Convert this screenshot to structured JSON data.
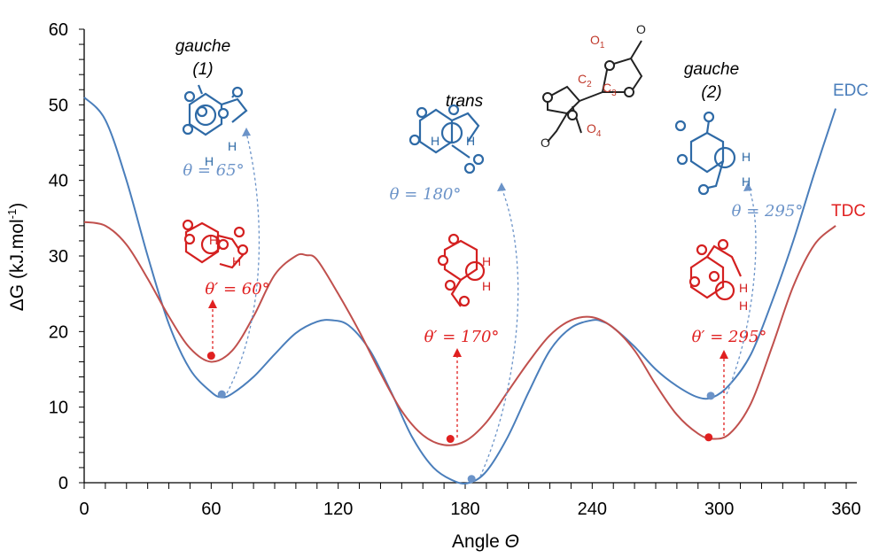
{
  "chart_data": {
    "type": "line",
    "title": "",
    "xlabel": "Angle Θ",
    "ylabel": "ΔG (kJ.mol-1)",
    "xlim": [
      0,
      360
    ],
    "ylim": [
      0,
      60
    ],
    "x_ticks": [
      0,
      60,
      120,
      180,
      240,
      300,
      360
    ],
    "y_ticks": [
      0,
      10,
      20,
      30,
      40,
      50,
      60
    ],
    "grid": false,
    "series": [
      {
        "name": "EDC",
        "color": "#4a7ebb",
        "x": [
          0,
          10,
          20,
          30,
          40,
          50,
          60,
          65,
          70,
          80,
          90,
          100,
          110,
          117,
          125,
          135,
          145,
          155,
          165,
          175,
          182,
          190,
          200,
          210,
          220,
          230,
          240,
          245,
          250,
          260,
          270,
          280,
          290,
          297,
          305,
          315,
          325,
          335,
          345,
          355
        ],
        "values": [
          51,
          48,
          40,
          30,
          21,
          15,
          12,
          11.3,
          11.8,
          14,
          17,
          19.8,
          21.3,
          21.5,
          20.8,
          17.5,
          12,
          6,
          2,
          0.2,
          0,
          1.5,
          6,
          12,
          17.5,
          20.5,
          21.5,
          21.3,
          20.5,
          18,
          15,
          12.8,
          11.3,
          11.3,
          13,
          17,
          24,
          32,
          41,
          49.5
        ]
      },
      {
        "name": "TDC",
        "color": "#c0504d",
        "x": [
          0,
          10,
          20,
          30,
          40,
          50,
          60,
          70,
          80,
          90,
          100,
          105,
          110,
          120,
          130,
          140,
          150,
          160,
          170,
          180,
          190,
          200,
          210,
          220,
          230,
          240,
          250,
          260,
          270,
          280,
          290,
          297,
          305,
          315,
          325,
          335,
          345,
          355
        ],
        "values": [
          34.5,
          34,
          31.5,
          27,
          22,
          17.8,
          16,
          17.5,
          22,
          27.5,
          30,
          30.1,
          29.5,
          25,
          20,
          14.5,
          9.5,
          6.3,
          5,
          5.5,
          8,
          12,
          16,
          19.5,
          21.5,
          21.9,
          20.5,
          17.5,
          13,
          9,
          6.5,
          5.8,
          6.5,
          10.5,
          18,
          26,
          31.5,
          34
        ]
      }
    ],
    "markers": [
      {
        "series": "EDC",
        "x": 65,
        "y": 11.7
      },
      {
        "series": "EDC",
        "x": 183,
        "y": 0.5
      },
      {
        "series": "EDC",
        "x": 296,
        "y": 11.5
      },
      {
        "series": "TDC",
        "x": 60,
        "y": 16.8
      },
      {
        "series": "TDC",
        "x": 173,
        "y": 5.8
      },
      {
        "series": "TDC",
        "x": 295,
        "y": 6
      }
    ],
    "annotations": {
      "gauche1": "gauche\n(1)",
      "trans": "trans",
      "gauche2": "gauche\n(2)",
      "edc_angles": [
        "θ = 65°",
        "θ = 180°",
        "θ = 295°"
      ],
      "tdc_angles": [
        "θ′ = 60°",
        "θ′ = 170°",
        "θ′ = 295°"
      ]
    }
  },
  "labels": {
    "gauche1_line1": "gauche",
    "gauche1_line2": "(1)",
    "trans": "trans",
    "gauche2_line1": "gauche",
    "gauche2_line2": "(2)",
    "edc_65": "θ = 65°",
    "edc_180": "θ = 180°",
    "edc_295": "θ = 295°",
    "tdc_60": "θ′ = 60°",
    "tdc_170": "θ′ = 170°",
    "tdc_295": "θ′ = 295°",
    "series_edc": "EDC",
    "series_tdc": "TDC",
    "atom_o": "O",
    "atom_h": "H",
    "atom_c": "C",
    "sub_1": "1",
    "sub_2": "2",
    "sub_3": "3",
    "sub_4": "4",
    "xlabel_main": "Angle ",
    "xlabel_sym": "Θ",
    "ylabel_main": "ΔG (kJ.mol",
    "ylabel_sup": "-1",
    "ylabel_close": ")"
  },
  "colors": {
    "edc": "#4a7ebb",
    "tdc": "#c0504d",
    "edc_text": "#6b93c8",
    "tdc_text": "#e02020"
  }
}
